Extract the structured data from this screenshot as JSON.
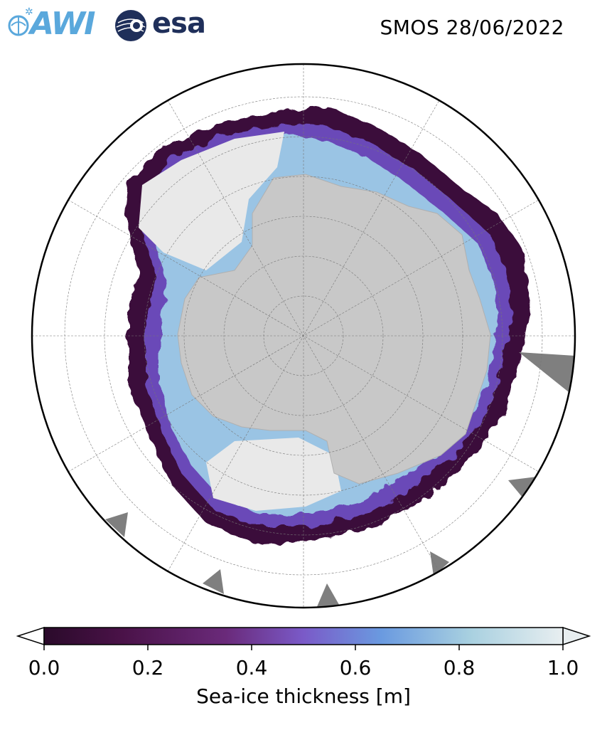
{
  "header": {
    "title": "SMOS 28/06/2022",
    "logos": [
      "AWI",
      "esa"
    ]
  },
  "map": {
    "projection": "south-polar-stereographic",
    "land_color": "#c8c8c8",
    "missing_data_color": "#7f7f7f",
    "ocean_color": "#ffffff"
  },
  "colorbar": {
    "label": "Sea-ice thickness [m]",
    "ticks": [
      "0.0",
      "0.2",
      "0.4",
      "0.6",
      "0.8",
      "1.0"
    ],
    "range": [
      0.0,
      1.0
    ],
    "extend": "both",
    "colors": [
      "#2a0a2a",
      "#4a1248",
      "#6a2a7a",
      "#7a5ac8",
      "#6a9ae0",
      "#a8d0e0",
      "#e8eef0"
    ]
  },
  "logos": {
    "awi_text": "AWI",
    "esa_text": "esa"
  }
}
